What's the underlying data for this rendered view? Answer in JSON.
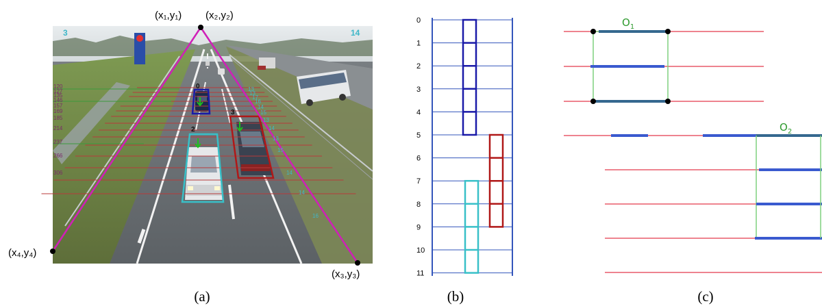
{
  "panels": {
    "a": {
      "caption": "(a)",
      "corners": [
        {
          "label": "(x₁,y₁)"
        },
        {
          "label": "(x₂,y₂)"
        },
        {
          "label": "(x₃,y₃)"
        },
        {
          "label": "(x₄,y₄)"
        }
      ],
      "lane_counts": {
        "left": "3",
        "right": "14"
      },
      "band_labels_left": [
        "120",
        "127",
        "135",
        "146",
        "157",
        "169",
        "185",
        "214",
        "237",
        "266",
        "306"
      ],
      "band_labels_right": [
        "13",
        "13",
        "17",
        "16",
        "14",
        "15",
        "13",
        "14",
        "13",
        "15",
        "14",
        "14",
        "16"
      ],
      "vehicles": [
        {
          "id": "0",
          "color": "#1a1aa8"
        },
        {
          "id": "2",
          "color": "#38c0c8"
        },
        {
          "id": "3",
          "color": "#b01818"
        }
      ],
      "colors": {
        "trapezoid": "#d01fb8",
        "lines": "#b83a3a",
        "green_lines": "#3c9a3c",
        "arrows": "#1fbf1f"
      }
    },
    "b": {
      "caption": "(b)",
      "row_labels": [
        "0",
        "1",
        "2",
        "3",
        "4",
        "5",
        "6",
        "7",
        "8",
        "9",
        "10",
        "11"
      ],
      "tracks": [
        {
          "color": "#1a1aa8",
          "from_row": 0,
          "to_row": 5
        },
        {
          "color": "#b01818",
          "from_row": 5,
          "to_row": 9
        },
        {
          "color": "#38c0c8",
          "from_row": 7,
          "to_row": 11
        }
      ],
      "colors": {
        "grid": "#3355bb"
      }
    },
    "c": {
      "caption": "(c)",
      "labels": [
        {
          "symbol": "Ο",
          "sub": "1"
        },
        {
          "symbol": "Ο",
          "sub": "2"
        }
      ],
      "colors": {
        "lines": "#e85a6a",
        "segments": "#3a5acf",
        "box": "#7fd07f",
        "points": "#000000"
      }
    }
  }
}
